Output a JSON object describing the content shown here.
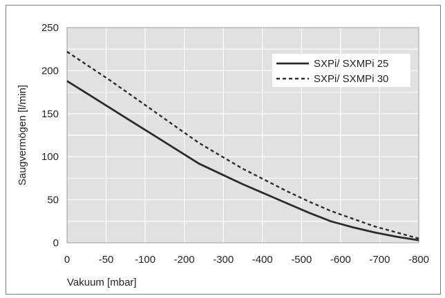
{
  "chart_data": {
    "type": "line",
    "title": "",
    "xlabel": "Vakuum [mbar]",
    "ylabel": "Saugvermögen [l/min]",
    "x_tick_labels": [
      "0",
      "-50",
      "-100",
      "-200",
      "-300",
      "-400",
      "-500",
      "-600",
      "-700",
      "-800"
    ],
    "y_tick_labels": [
      "0",
      "50",
      "100",
      "150",
      "200",
      "250"
    ],
    "xlim": [
      0,
      -800
    ],
    "ylim": [
      0,
      250
    ],
    "grid": true,
    "legend_position": "top-right",
    "series": [
      {
        "name": "SXPi/ SXMPi 25",
        "style": "solid",
        "color": "#2b2b2b",
        "x": [
          0,
          -50,
          -100,
          -150,
          -200,
          -250,
          -300,
          -350,
          -400,
          -450,
          -500,
          -550,
          -600,
          -650,
          -700,
          -750,
          -800
        ],
        "y": [
          188,
          172,
          156,
          140,
          124,
          108,
          92,
          80,
          68,
          57,
          46,
          35,
          25,
          18,
          12,
          7,
          3
        ]
      },
      {
        "name": "SXPi/ SXMPi 30",
        "style": "dashed",
        "color": "#2b2b2b",
        "x": [
          0,
          -50,
          -100,
          -150,
          -200,
          -250,
          -300,
          -350,
          -400,
          -450,
          -500,
          -550,
          -600,
          -650,
          -700,
          -750,
          -800
        ],
        "y": [
          222,
          205,
          188,
          170,
          152,
          134,
          116,
          101,
          86,
          73,
          60,
          48,
          37,
          28,
          19,
          12,
          5
        ]
      }
    ]
  }
}
